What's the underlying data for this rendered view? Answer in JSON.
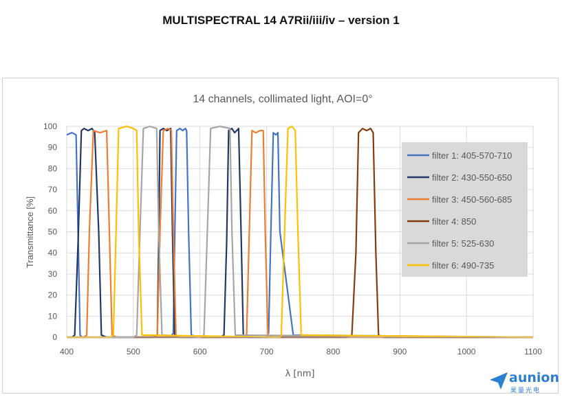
{
  "page": {
    "title": "MULTISPECTRAL 14 A7Rii/iii/iv – version 1"
  },
  "logo": {
    "name": "aunion",
    "subtitle": "昊量光电",
    "color": "#2b7fd0"
  },
  "chart_data": {
    "type": "line",
    "title": "14 channels, collimated light, AOI=0°",
    "xlabel": "λ [nm]",
    "ylabel": "Transmittance [%]",
    "xlim": [
      400,
      1100
    ],
    "ylim": [
      0,
      100
    ],
    "xticks": [
      400,
      500,
      600,
      700,
      800,
      900,
      1000,
      1100
    ],
    "yticks": [
      0,
      10,
      20,
      30,
      40,
      50,
      60,
      70,
      80,
      90,
      100
    ],
    "grid": true,
    "legend_position": "right",
    "series": [
      {
        "name": "filter 1: 405-570-710",
        "color": "#4472c4",
        "x": [
          400,
          408,
          414,
          417,
          420,
          423,
          426,
          550,
          556,
          560,
          562,
          565,
          570,
          574,
          578,
          580,
          583,
          587,
          600,
          695,
          700,
          703,
          706,
          710,
          714,
          717,
          720,
          740,
          1100
        ],
        "y": [
          96,
          97,
          96,
          50,
          1,
          0,
          0,
          0,
          0,
          2,
          45,
          98,
          99,
          98,
          99,
          98,
          50,
          1,
          0,
          0,
          0,
          2,
          45,
          97,
          96,
          97,
          50,
          1,
          0
        ]
      },
      {
        "name": "filter 2: 430-550-650",
        "color": "#1f3864",
        "x": [
          400,
          408,
          412,
          417,
          422,
          426,
          432,
          438,
          442,
          448,
          452,
          460,
          530,
          536,
          538,
          540,
          545,
          550,
          556,
          559,
          562,
          568,
          630,
          636,
          640,
          643,
          648,
          652,
          658,
          662,
          665,
          670,
          1100
        ],
        "y": [
          0,
          0,
          1,
          45,
          98,
          99,
          98,
          99,
          97,
          50,
          1,
          0,
          0,
          1,
          45,
          98,
          99,
          98,
          99,
          45,
          1,
          0,
          0,
          1,
          45,
          98,
          99,
          97,
          99,
          45,
          1,
          0,
          0
        ]
      },
      {
        "name": "filter 3: 450-560-685",
        "color": "#ed7d31",
        "x": [
          400,
          425,
          430,
          434,
          440,
          450,
          460,
          464,
          468,
          475,
          530,
          536,
          540,
          545,
          552,
          557,
          560,
          564,
          570,
          665,
          670,
          674,
          678,
          684,
          690,
          695,
          698,
          702,
          710,
          1100
        ],
        "y": [
          0,
          0,
          1,
          50,
          98,
          97,
          98,
          50,
          1,
          0,
          0,
          1,
          50,
          98,
          99,
          98,
          50,
          1,
          0,
          0,
          1,
          50,
          98,
          97,
          98,
          98,
          50,
          1,
          0,
          0
        ]
      },
      {
        "name": "filter 4: 850",
        "color": "#843c0c",
        "x": [
          400,
          820,
          828,
          834,
          838,
          844,
          850,
          856,
          860,
          864,
          868,
          876,
          1100
        ],
        "y": [
          0,
          0,
          1,
          40,
          97,
          99,
          98,
          99,
          97,
          40,
          1,
          0,
          0
        ]
      },
      {
        "name": "filter 5: 525-630",
        "color": "#a5a5a5",
        "x": [
          400,
          500,
          505,
          510,
          515,
          525,
          535,
          538,
          543,
          600,
          606,
          611,
          616,
          630,
          645,
          648,
          653,
          1100
        ],
        "y": [
          0,
          0,
          1,
          50,
          99,
          100,
          99,
          50,
          1,
          0,
          1,
          50,
          99,
          100,
          99,
          50,
          1,
          0
        ]
      },
      {
        "name": "filter 6: 490-735",
        "color": "#ffc000",
        "x": [
          400,
          466,
          470,
          474,
          478,
          490,
          500,
          505,
          508,
          513,
          720,
          722,
          727,
          732,
          738,
          743,
          747,
          752,
          1100
        ],
        "y": [
          0,
          0,
          1,
          50,
          99,
          100,
          99,
          98,
          50,
          1,
          0,
          1,
          50,
          99,
          100,
          98,
          50,
          1,
          0
        ]
      }
    ]
  }
}
